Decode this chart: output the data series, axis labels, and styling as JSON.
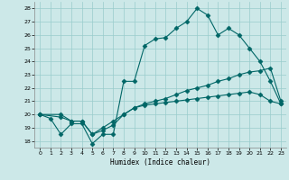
{
  "xlabel": "Humidex (Indice chaleur)",
  "bg_color": "#cce8e8",
  "grid_color": "#99cccc",
  "line_color": "#006666",
  "xlim": [
    -0.5,
    23.5
  ],
  "ylim": [
    17.5,
    28.5
  ],
  "yticks": [
    18,
    19,
    20,
    21,
    22,
    23,
    24,
    25,
    26,
    27,
    28
  ],
  "xticks": [
    0,
    1,
    2,
    3,
    4,
    5,
    6,
    7,
    8,
    9,
    10,
    11,
    12,
    13,
    14,
    15,
    16,
    17,
    18,
    19,
    20,
    21,
    22,
    23
  ],
  "line1_x": [
    0,
    1,
    2,
    3,
    4,
    5,
    6,
    7,
    8,
    9,
    10,
    11,
    12,
    13,
    14,
    15,
    16,
    17,
    18,
    19,
    20,
    21,
    22,
    23
  ],
  "line1_y": [
    20.0,
    19.7,
    18.5,
    19.3,
    19.3,
    17.8,
    18.5,
    18.5,
    22.5,
    22.5,
    25.2,
    25.7,
    25.8,
    26.5,
    27.0,
    28.0,
    27.5,
    26.0,
    26.5,
    26.0,
    25.0,
    24.0,
    22.5,
    20.8
  ],
  "line2_x": [
    0,
    2,
    3,
    4,
    5,
    6,
    7,
    8,
    9,
    10,
    11,
    12,
    13,
    14,
    15,
    16,
    17,
    18,
    19,
    20,
    21,
    22,
    23
  ],
  "line2_y": [
    20.0,
    20.0,
    19.5,
    19.5,
    18.5,
    19.0,
    19.5,
    20.0,
    20.5,
    20.8,
    21.0,
    21.2,
    21.5,
    21.8,
    22.0,
    22.2,
    22.5,
    22.7,
    23.0,
    23.2,
    23.3,
    23.5,
    21.0
  ],
  "line3_x": [
    0,
    2,
    3,
    4,
    5,
    6,
    7,
    8,
    9,
    10,
    11,
    12,
    13,
    14,
    15,
    16,
    17,
    18,
    19,
    20,
    21,
    22,
    23
  ],
  "line3_y": [
    20.0,
    19.8,
    19.5,
    19.5,
    18.5,
    18.8,
    19.2,
    20.0,
    20.5,
    20.7,
    20.8,
    20.9,
    21.0,
    21.1,
    21.2,
    21.3,
    21.4,
    21.5,
    21.6,
    21.7,
    21.5,
    21.0,
    20.8
  ]
}
